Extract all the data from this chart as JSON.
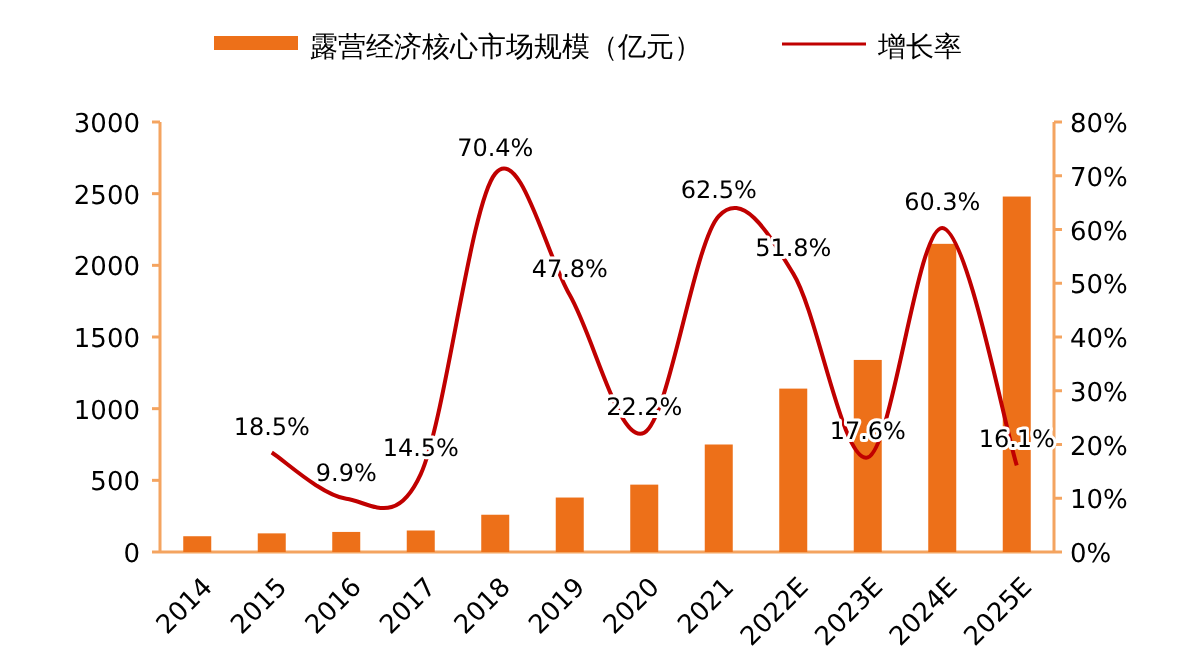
{
  "chart_data": {
    "type": "bar",
    "categories": [
      "2014",
      "2015",
      "2016",
      "2017",
      "2018",
      "2019",
      "2020",
      "2021",
      "2022E",
      "2023E",
      "2024E",
      "2025E"
    ],
    "series": [
      {
        "name": "露营经济核心市场规模（亿元）",
        "color": "#ed7019",
        "values": [
          110,
          130,
          140,
          150,
          260,
          380,
          470,
          750,
          1140,
          1340,
          2150,
          2480
        ]
      },
      {
        "name": "增长率",
        "type": "line",
        "axis": "y2",
        "color": "#c00000",
        "values": [
          null,
          18.5,
          9.9,
          14.5,
          70.4,
          47.8,
          22.2,
          62.5,
          51.8,
          17.6,
          60.3,
          16.1
        ],
        "value_labels": [
          null,
          "18.5%",
          "9.9%",
          "14.5%",
          "70.4%",
          "47.8%",
          "22.2%",
          "62.5%",
          "51.8%",
          "17.6%",
          "60.3%",
          "16.1%"
        ]
      }
    ],
    "ylim": [
      0,
      3000
    ],
    "yticks": [
      0,
      500,
      1000,
      1500,
      2000,
      2500,
      3000
    ],
    "y2lim": [
      0,
      80
    ],
    "y2ticks": [
      {
        "value": 0,
        "label": "0%"
      },
      {
        "value": 10,
        "label": "10%"
      },
      {
        "value": 20,
        "label": "20%"
      },
      {
        "value": 30,
        "label": "30%"
      },
      {
        "value": 40,
        "label": "40%"
      },
      {
        "value": 50,
        "label": "50%"
      },
      {
        "value": 60,
        "label": "60%"
      },
      {
        "value": 70,
        "label": "70%"
      },
      {
        "value": 80,
        "label": "80%"
      }
    ],
    "legend": "top",
    "grid": false,
    "marker": "none"
  }
}
